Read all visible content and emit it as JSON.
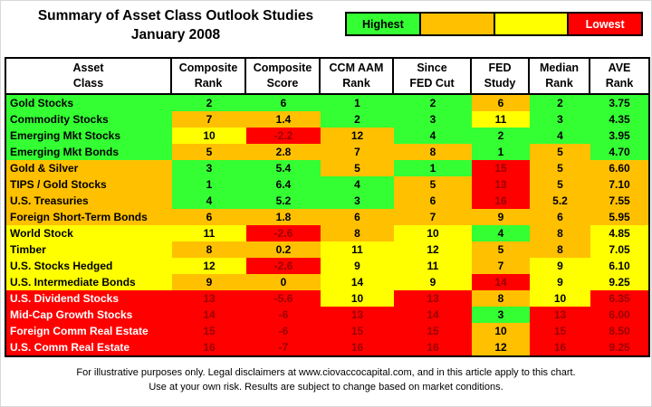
{
  "title": {
    "line1": "Summary of Asset Class Outlook Studies",
    "line2": "January 2008"
  },
  "colors": {
    "green": "#33ff33",
    "orange": "#ffc000",
    "yellow": "#ffff00",
    "red": "#ff0000",
    "darkred_text": "#990000",
    "white_text": "#ffffff",
    "black_text": "#000000"
  },
  "legend": {
    "cells": [
      {
        "label": "Highest",
        "color": "green",
        "text_color": "#000000"
      },
      {
        "label": "",
        "color": "orange",
        "text_color": "#000000"
      },
      {
        "label": "",
        "color": "yellow",
        "text_color": "#000000"
      },
      {
        "label": "Lowest",
        "color": "red",
        "text_color": "#ffffff"
      }
    ]
  },
  "chart_data": {
    "type": "heatmap",
    "title": "Summary of Asset Class Outlook Studies",
    "subtitle": "January 2008",
    "legend_scale": [
      "Highest (green)",
      "orange",
      "yellow",
      "Lowest (red)"
    ],
    "columns": [
      {
        "line1": "Asset",
        "line2": "Class"
      },
      {
        "line1": "Composite",
        "line2": "Rank"
      },
      {
        "line1": "Composite",
        "line2": "Score"
      },
      {
        "line1": "CCM AAM",
        "line2": "Rank"
      },
      {
        "line1": "Since",
        "line2": "FED Cut"
      },
      {
        "line1": "FED",
        "line2": "Study"
      },
      {
        "line1": "Median",
        "line2": "Rank"
      },
      {
        "line1": "AVE",
        "line2": "Rank"
      }
    ],
    "rows": [
      {
        "label": "Gold Stocks",
        "label_bg": "green",
        "cells": [
          [
            "2",
            "green"
          ],
          [
            "6",
            "green"
          ],
          [
            "1",
            "green"
          ],
          [
            "2",
            "green"
          ],
          [
            "6",
            "orange"
          ],
          [
            "2",
            "green"
          ],
          [
            "3.75",
            "green"
          ]
        ]
      },
      {
        "label": "Commodity Stocks",
        "label_bg": "green",
        "cells": [
          [
            "7",
            "orange"
          ],
          [
            "1.4",
            "orange"
          ],
          [
            "2",
            "green"
          ],
          [
            "3",
            "green"
          ],
          [
            "11",
            "yellow"
          ],
          [
            "3",
            "green"
          ],
          [
            "4.35",
            "green"
          ]
        ]
      },
      {
        "label": "Emerging Mkt Stocks",
        "label_bg": "green",
        "cells": [
          [
            "10",
            "yellow"
          ],
          [
            "-2.2",
            "red"
          ],
          [
            "12",
            "orange"
          ],
          [
            "4",
            "green"
          ],
          [
            "2",
            "green"
          ],
          [
            "4",
            "green"
          ],
          [
            "3.95",
            "green"
          ]
        ]
      },
      {
        "label": "Emerging Mkt Bonds",
        "label_bg": "green",
        "cells": [
          [
            "5",
            "orange"
          ],
          [
            "2.8",
            "orange"
          ],
          [
            "7",
            "orange"
          ],
          [
            "8",
            "orange"
          ],
          [
            "1",
            "green"
          ],
          [
            "5",
            "orange"
          ],
          [
            "4.70",
            "green"
          ]
        ]
      },
      {
        "label": "Gold & Silver",
        "label_bg": "orange",
        "cells": [
          [
            "3",
            "green"
          ],
          [
            "5.4",
            "green"
          ],
          [
            "5",
            "orange"
          ],
          [
            "1",
            "green"
          ],
          [
            "15",
            "red"
          ],
          [
            "5",
            "orange"
          ],
          [
            "6.60",
            "orange"
          ]
        ]
      },
      {
        "label": "TIPS / Gold Stocks",
        "label_bg": "orange",
        "cells": [
          [
            "1",
            "green"
          ],
          [
            "6.4",
            "green"
          ],
          [
            "4",
            "green"
          ],
          [
            "5",
            "orange"
          ],
          [
            "13",
            "red"
          ],
          [
            "5",
            "orange"
          ],
          [
            "7.10",
            "orange"
          ]
        ]
      },
      {
        "label": "U.S. Treasuries",
        "label_bg": "orange",
        "cells": [
          [
            "4",
            "green"
          ],
          [
            "5.2",
            "green"
          ],
          [
            "3",
            "green"
          ],
          [
            "6",
            "orange"
          ],
          [
            "16",
            "red"
          ],
          [
            "5.2",
            "orange"
          ],
          [
            "7.55",
            "orange"
          ]
        ]
      },
      {
        "label": "Foreign Short-Term Bonds",
        "label_bg": "orange",
        "cells": [
          [
            "6",
            "orange"
          ],
          [
            "1.8",
            "orange"
          ],
          [
            "6",
            "orange"
          ],
          [
            "7",
            "orange"
          ],
          [
            "9",
            "orange"
          ],
          [
            "6",
            "orange"
          ],
          [
            "5.95",
            "orange"
          ]
        ]
      },
      {
        "label": "World Stock",
        "label_bg": "yellow",
        "cells": [
          [
            "11",
            "yellow"
          ],
          [
            "-2.6",
            "red"
          ],
          [
            "8",
            "orange"
          ],
          [
            "10",
            "yellow"
          ],
          [
            "4",
            "green"
          ],
          [
            "8",
            "orange"
          ],
          [
            "4.85",
            "yellow"
          ]
        ]
      },
      {
        "label": "Timber",
        "label_bg": "yellow",
        "cells": [
          [
            "8",
            "orange"
          ],
          [
            "0.2",
            "orange"
          ],
          [
            "11",
            "yellow"
          ],
          [
            "12",
            "yellow"
          ],
          [
            "5",
            "orange"
          ],
          [
            "8",
            "orange"
          ],
          [
            "7.05",
            "yellow"
          ]
        ]
      },
      {
        "label": "U.S. Stocks Hedged",
        "label_bg": "yellow",
        "cells": [
          [
            "12",
            "yellow"
          ],
          [
            "-2.6",
            "red"
          ],
          [
            "9",
            "yellow"
          ],
          [
            "11",
            "yellow"
          ],
          [
            "7",
            "orange"
          ],
          [
            "9",
            "yellow"
          ],
          [
            "6.10",
            "yellow"
          ]
        ]
      },
      {
        "label": "U.S. Intermediate Bonds",
        "label_bg": "yellow",
        "cells": [
          [
            "9",
            "orange"
          ],
          [
            "0",
            "orange"
          ],
          [
            "14",
            "yellow"
          ],
          [
            "9",
            "yellow"
          ],
          [
            "14",
            "red"
          ],
          [
            "9",
            "yellow"
          ],
          [
            "9.25",
            "yellow"
          ]
        ]
      },
      {
        "label": "U.S. Dividend Stocks",
        "label_bg": "red",
        "cells": [
          [
            "13",
            "red"
          ],
          [
            "-5.6",
            "red"
          ],
          [
            "10",
            "yellow"
          ],
          [
            "13",
            "red"
          ],
          [
            "8",
            "orange"
          ],
          [
            "10",
            "yellow"
          ],
          [
            "6.35",
            "red"
          ]
        ]
      },
      {
        "label": "Mid-Cap Growth Stocks",
        "label_bg": "red",
        "cells": [
          [
            "14",
            "red"
          ],
          [
            "-6",
            "red"
          ],
          [
            "13",
            "red"
          ],
          [
            "14",
            "red"
          ],
          [
            "3",
            "green"
          ],
          [
            "13",
            "red"
          ],
          [
            "6.00",
            "red"
          ]
        ]
      },
      {
        "label": "Foreign Comm Real Estate",
        "label_bg": "red",
        "cells": [
          [
            "15",
            "red"
          ],
          [
            "-6",
            "red"
          ],
          [
            "15",
            "red"
          ],
          [
            "15",
            "red"
          ],
          [
            "10",
            "orange"
          ],
          [
            "15",
            "red"
          ],
          [
            "8.50",
            "red"
          ]
        ]
      },
      {
        "label": "U.S. Comm Real Estate",
        "label_bg": "red",
        "cells": [
          [
            "16",
            "red"
          ],
          [
            "-7",
            "red"
          ],
          [
            "16",
            "red"
          ],
          [
            "16",
            "red"
          ],
          [
            "12",
            "orange"
          ],
          [
            "16",
            "red"
          ],
          [
            "9.25",
            "red"
          ]
        ]
      }
    ]
  },
  "footer": {
    "line1": "For illustrative purposes only. Legal disclaimers at www.ciovaccocapital.com, and in this article apply to this chart.",
    "line2": "Use at your own risk. Results are subject to change based on market conditions."
  }
}
